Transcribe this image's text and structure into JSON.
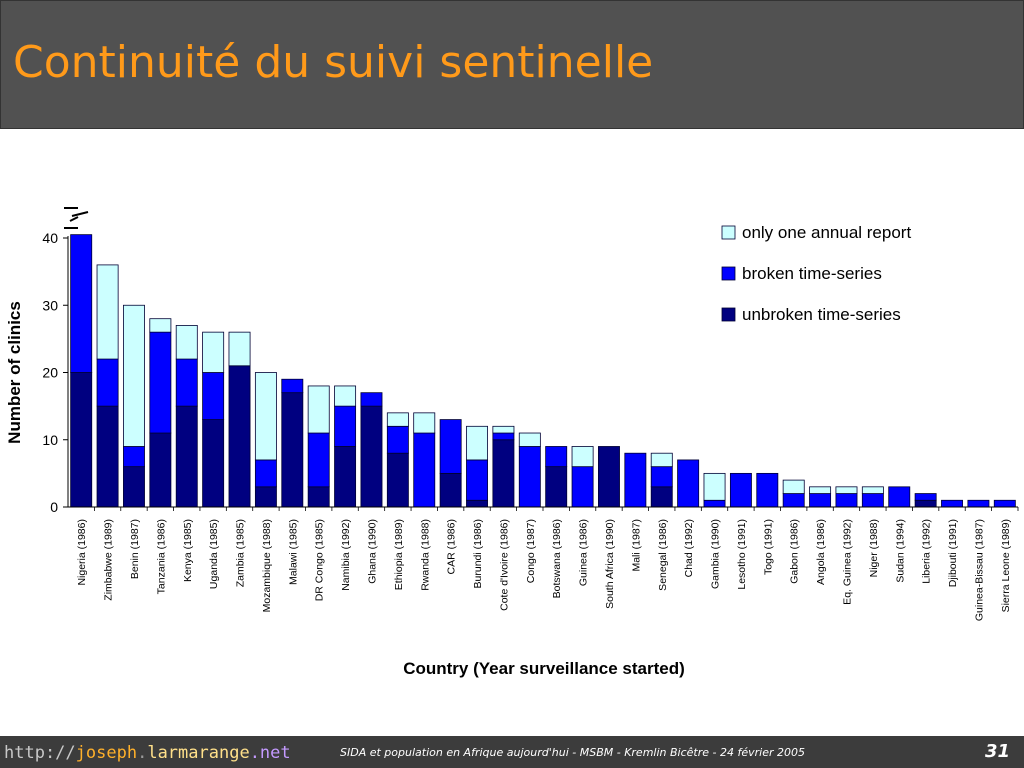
{
  "slide": {
    "title": "Continuité du suivi sentinelle",
    "footer": {
      "url_parts": [
        "http://",
        "joseph",
        ".",
        "larmarange",
        ".net"
      ],
      "text": "SIDA et population en Afrique aujourd'hui - MSBM - Kremlin Bicêtre - 24 février 2005",
      "page_number": "31"
    }
  },
  "chart_data": {
    "type": "bar",
    "stacked": true,
    "xlabel": "Country (Year surveillance started)",
    "ylabel": "Number of clinics",
    "ylim": [
      0,
      40
    ],
    "yticks": [
      0,
      10,
      20,
      30,
      40
    ],
    "axis_break": true,
    "legend_position": "top-right",
    "categories": [
      "Nigeria (1986)",
      "Zimbabwe (1989)",
      "Benin (1987)",
      "Tanzania (1986)",
      "Kenya (1985)",
      "Uganda (1985)",
      "Zambia (1985)",
      "Mozambique (1988)",
      "Malawi (1985)",
      "DR Congo (1985)",
      "Namibia (1992)",
      "Ghana (1990)",
      "Ethiopia (1989)",
      "Rwanda (1988)",
      "CAR (1986)",
      "Burundi (1986)",
      "Cote d'Ivoire (1986)",
      "Congo (1987)",
      "Botswana (1986)",
      "Guinea (1986)",
      "South Africa (1990)",
      "Mali (1987)",
      "Senegal (1986)",
      "Chad (1992)",
      "Gambia (1990)",
      "Lesotho (1991)",
      "Togo (1991)",
      "Gabon (1986)",
      "Angola (1986)",
      "Eq. Guinea (1992)",
      "Niger (1988)",
      "Sudan (1994)",
      "Liberia (1992)",
      "Djibouti (1991)",
      "Guinea-Bissau (1987)",
      "Sierra Leone (1989)"
    ],
    "series": [
      {
        "name": "unbroken time-series",
        "color": "#000080",
        "values": [
          20,
          15,
          6,
          11,
          15,
          13,
          21,
          3,
          17,
          3,
          9,
          15,
          8,
          0,
          5,
          1,
          10,
          0,
          6,
          0,
          9,
          0,
          3,
          0,
          0,
          0,
          0,
          0,
          0,
          0,
          0,
          0,
          1,
          0,
          0,
          0
        ]
      },
      {
        "name": "broken time-series",
        "color": "#0000ff",
        "values": [
          20.5,
          7,
          3,
          15,
          7,
          7,
          0,
          4,
          2,
          8,
          6,
          2,
          4,
          11,
          8,
          6,
          1,
          9,
          3,
          6,
          0,
          8,
          3,
          7,
          1,
          5,
          5,
          2,
          2,
          2,
          2,
          3,
          1,
          1,
          1,
          1
        ]
      },
      {
        "name": "only one annual report",
        "color": "#ccffff",
        "values": [
          0,
          14,
          21,
          2,
          5,
          6,
          5,
          13,
          0,
          7,
          3,
          0,
          2,
          3,
          0,
          5,
          1,
          2,
          0,
          3,
          0,
          0,
          2,
          0,
          4,
          0,
          0,
          2,
          1,
          1,
          1,
          0,
          0,
          0,
          0,
          0
        ]
      }
    ],
    "legend": [
      {
        "label": "only one annual report",
        "color": "#ccffff"
      },
      {
        "label": "broken time-series",
        "color": "#0000ff"
      },
      {
        "label": "unbroken time-series",
        "color": "#000080"
      }
    ]
  }
}
